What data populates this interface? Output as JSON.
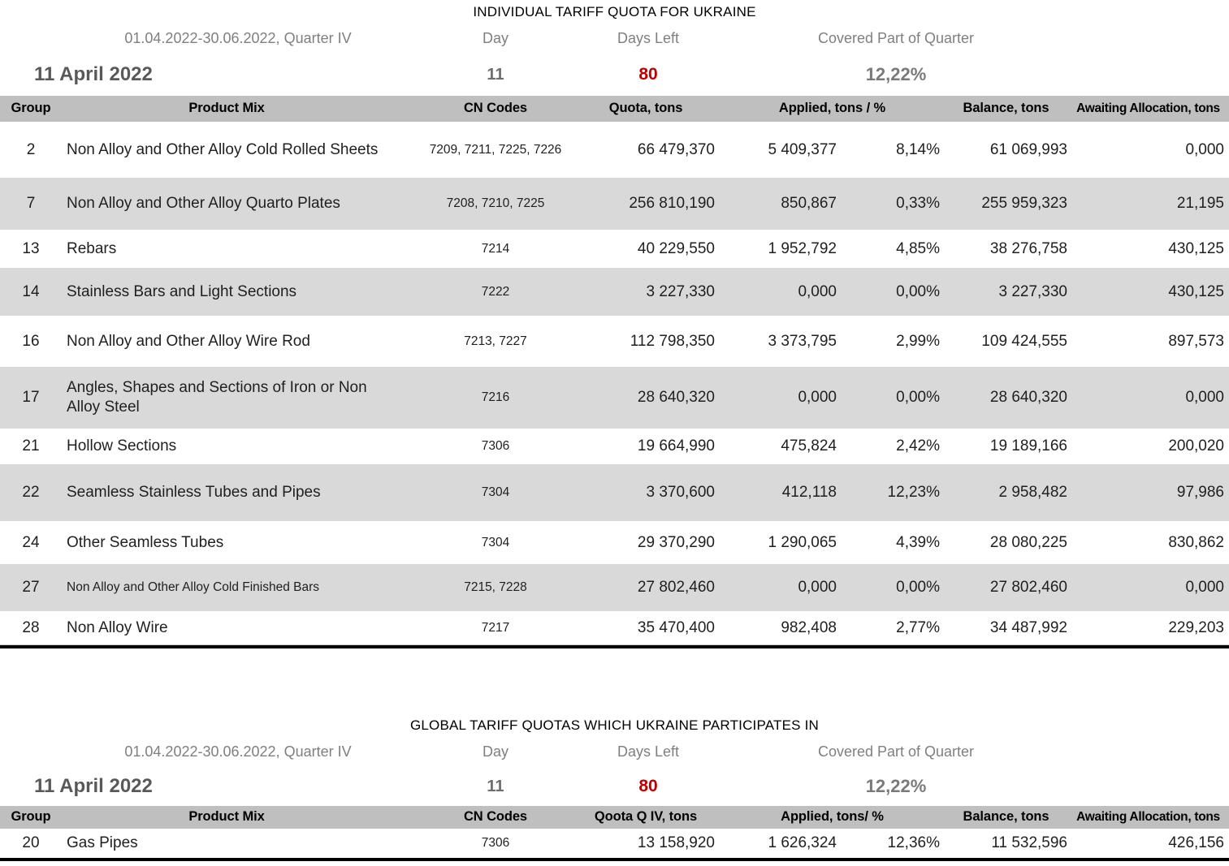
{
  "colors": {
    "days_left_red": "#c00000",
    "header_bg": "#bfbfbf",
    "row_alt_bg": "#d9d9d9",
    "muted_text": "#7f7f7f",
    "date_text": "#595959",
    "table_text": "#1f1f1f"
  },
  "table1": {
    "title": "INDIVIDUAL TARIFF QUOTA FOR UKRAINE",
    "meta": {
      "period": "01.04.2022-30.06.2022, Quarter IV",
      "date": "11 April 2022",
      "day_label": "Day",
      "day_value": "11",
      "days_left_label": "Days Left",
      "days_left_value": "80",
      "covered_label": "Covered Part of Quarter",
      "covered_value": "12,22%"
    },
    "columns": {
      "group": "Group",
      "product": "Product Mix",
      "cn": "CN Codes",
      "quota": "Quota, tons",
      "applied": "Applied, tons / %",
      "balance": "Balance, tons",
      "awaiting": "Awaiting Allocation, tons"
    },
    "rows": [
      {
        "group": "2",
        "product": "Non Alloy and Other Alloy Cold Rolled Sheets",
        "cn": "7209, 7211, 7225, 7226",
        "quota": "66 479,370",
        "applied": "5 409,377",
        "pct": "8,14%",
        "balance": "61 069,993",
        "awaiting": "0,000"
      },
      {
        "group": "7",
        "product": "Non Alloy and Other Alloy Quarto Plates",
        "cn": "7208, 7210, 7225",
        "quota": "256 810,190",
        "applied": "850,867",
        "pct": "0,33%",
        "balance": "255 959,323",
        "awaiting": "21,195"
      },
      {
        "group": "13",
        "product": "Rebars",
        "cn": "7214",
        "quota": "40 229,550",
        "applied": "1 952,792",
        "pct": "4,85%",
        "balance": "38 276,758",
        "awaiting": "430,125"
      },
      {
        "group": "14",
        "product": "Stainless Bars and Light Sections",
        "cn": "7222",
        "quota": "3 227,330",
        "applied": "0,000",
        "pct": "0,00%",
        "balance": "3 227,330",
        "awaiting": "430,125"
      },
      {
        "group": "16",
        "product": "Non Alloy and Other Alloy Wire Rod",
        "cn": "7213, 7227",
        "quota": "112 798,350",
        "applied": "3 373,795",
        "pct": "2,99%",
        "balance": "109 424,555",
        "awaiting": "897,573"
      },
      {
        "group": "17",
        "product": "Angles, Shapes and Sections of Iron or Non Alloy Steel",
        "cn": "7216",
        "quota": "28 640,320",
        "applied": "0,000",
        "pct": "0,00%",
        "balance": "28 640,320",
        "awaiting": "0,000"
      },
      {
        "group": "21",
        "product": "Hollow Sections",
        "cn": "7306",
        "quota": "19 664,990",
        "applied": "475,824",
        "pct": "2,42%",
        "balance": "19 189,166",
        "awaiting": "200,020"
      },
      {
        "group": "22",
        "product": "Seamless Stainless Tubes and Pipes",
        "cn": "7304",
        "quota": "3 370,600",
        "applied": "412,118",
        "pct": "12,23%",
        "balance": "2 958,482",
        "awaiting": "97,986"
      },
      {
        "group": "24",
        "product": "Other Seamless Tubes",
        "cn": "7304",
        "quota": "29 370,290",
        "applied": "1 290,065",
        "pct": "4,39%",
        "balance": "28 080,225",
        "awaiting": "830,862"
      },
      {
        "group": "27",
        "product": "Non Alloy and Other Alloy Cold Finished Bars",
        "cn": "7215, 7228",
        "quota": "27 802,460",
        "applied": "0,000",
        "pct": "0,00%",
        "balance": "27 802,460",
        "awaiting": "0,000"
      },
      {
        "group": "28",
        "product": "Non Alloy Wire",
        "cn": "7217",
        "quota": "35 470,400",
        "applied": "982,408",
        "pct": "2,77%",
        "balance": "34 487,992",
        "awaiting": "229,203"
      }
    ]
  },
  "table2": {
    "title": "GLOBAL TARIFF QUOTAS WHICH UKRAINE PARTICIPATES IN",
    "meta": {
      "period": "01.04.2022-30.06.2022, Quarter IV",
      "date": "11 April 2022",
      "day_label": "Day",
      "day_value": "11",
      "days_left_label": "Days Left",
      "days_left_value": "80",
      "covered_label": "Covered Part of Quarter",
      "covered_value": "12,22%"
    },
    "columns": {
      "group": "Group",
      "product": "Product Mix",
      "cn": "CN Codes",
      "quota": "Qoota Q IV, tons",
      "applied": "Applied, tons/ %",
      "balance": "Balance, tons",
      "awaiting": "Awaiting Allocation, tons"
    },
    "rows": [
      {
        "group": "20",
        "product": "Gas Pipes",
        "cn": "7306",
        "quota": "13 158,920",
        "applied": "1 626,324",
        "pct": "12,36%",
        "balance": "11 532,596",
        "awaiting": "426,156"
      }
    ]
  }
}
